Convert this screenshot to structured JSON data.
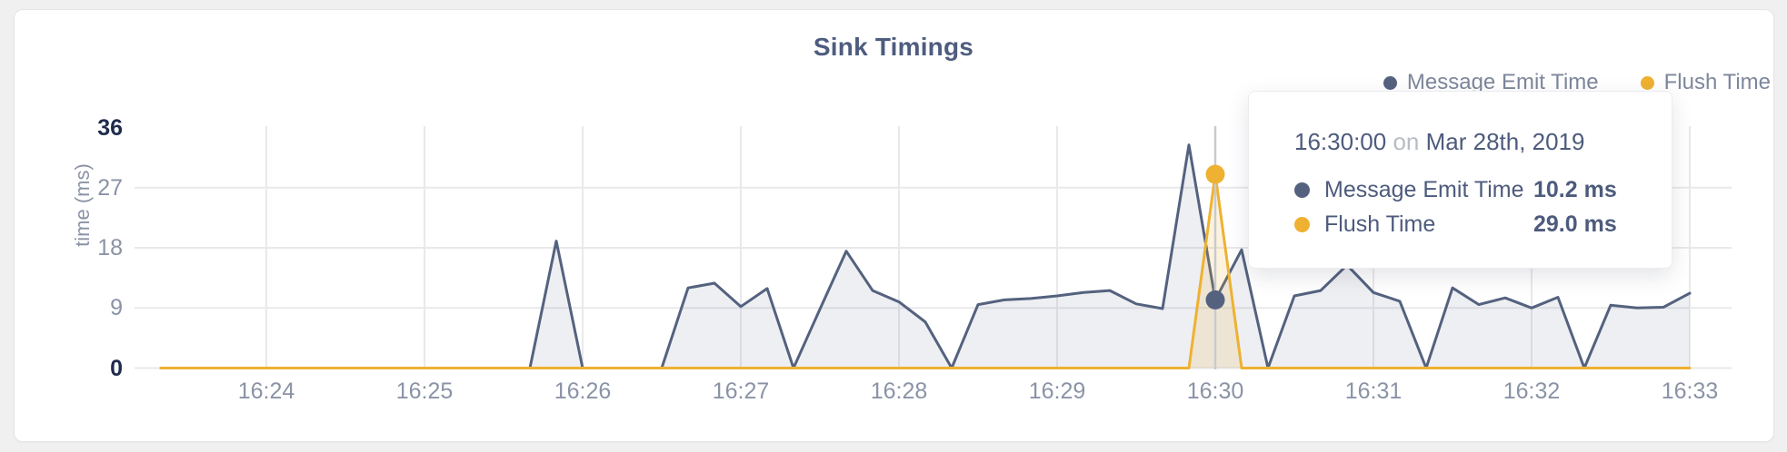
{
  "card": {
    "title": "Sink Timings"
  },
  "legend": {
    "items": [
      {
        "label": "Message Emit Time",
        "color": "#54627f"
      },
      {
        "label": "Flush Time",
        "color": "#eeb132"
      }
    ]
  },
  "tooltip": {
    "time": "16:30:00",
    "conjunction": "on",
    "date": "Mar 28th, 2019",
    "rows": [
      {
        "label": "Message Emit Time",
        "value": "10.2 ms",
        "color": "#54627f"
      },
      {
        "label": "Flush Time",
        "value": "29.0 ms",
        "color": "#eeb132"
      }
    ]
  },
  "chart_data": {
    "type": "area",
    "title": "Sink Timings",
    "xlabel": "",
    "ylabel": "time (ms)",
    "ylim": [
      0,
      36
    ],
    "grid": true,
    "legend_position": "top-right",
    "start_time": "16:23:20",
    "date": "Mar 28th, 2019",
    "step_seconds": 10,
    "y_ticks": [
      {
        "v": 36,
        "emphasis": true
      },
      {
        "v": 27,
        "emphasis": false
      },
      {
        "v": 18,
        "emphasis": false
      },
      {
        "v": 9,
        "emphasis": false
      },
      {
        "v": 0,
        "emphasis": true
      }
    ],
    "x_ticks": [
      {
        "label": "16:24",
        "sec": 40
      },
      {
        "label": "16:25",
        "sec": 100
      },
      {
        "label": "16:26",
        "sec": 160
      },
      {
        "label": "16:27",
        "sec": 220
      },
      {
        "label": "16:28",
        "sec": 280
      },
      {
        "label": "16:29",
        "sec": 340
      },
      {
        "label": "16:30",
        "sec": 400
      },
      {
        "label": "16:31",
        "sec": 460
      },
      {
        "label": "16:32",
        "sec": 520
      },
      {
        "label": "16:33",
        "sec": 580
      }
    ],
    "hover_index": 40,
    "hover_time": "16:30:00",
    "grid_color": "#e9e9eb",
    "hover_line_color": "#c9cacd",
    "series": [
      {
        "name": "Message Emit Time",
        "color": "#54627f",
        "fill": "rgba(84,98,127,0.10)",
        "values": [
          0,
          0,
          0,
          0,
          0,
          0,
          0,
          0,
          0,
          0,
          0,
          0,
          0,
          0,
          0,
          19.0,
          0,
          0,
          0,
          0,
          12.0,
          12.7,
          9.2,
          11.9,
          0,
          8.8,
          17.5,
          11.6,
          9.9,
          6.9,
          0,
          9.5,
          10.2,
          10.4,
          10.8,
          11.3,
          11.6,
          9.6,
          8.9,
          33.4,
          10.2,
          17.7,
          0,
          10.8,
          11.6,
          15.4,
          11.3,
          10.0,
          0,
          12.0,
          9.5,
          10.5,
          9.0,
          10.6,
          0,
          9.4,
          9.0,
          9.1,
          11.2
        ]
      },
      {
        "name": "Flush Time",
        "color": "#eeb132",
        "fill": "rgba(238,177,50,0.16)",
        "values": [
          0,
          0,
          0,
          0,
          0,
          0,
          0,
          0,
          0,
          0,
          0,
          0,
          0,
          0,
          0,
          0,
          0,
          0,
          0,
          0,
          0,
          0,
          0,
          0,
          0,
          0,
          0,
          0,
          0,
          0,
          0,
          0,
          0,
          0,
          0,
          0,
          0,
          0,
          0,
          0,
          29.0,
          0,
          0,
          0,
          0,
          0,
          0,
          0,
          0,
          0,
          0,
          0,
          0,
          0,
          0,
          0,
          0,
          0,
          0
        ]
      }
    ]
  }
}
